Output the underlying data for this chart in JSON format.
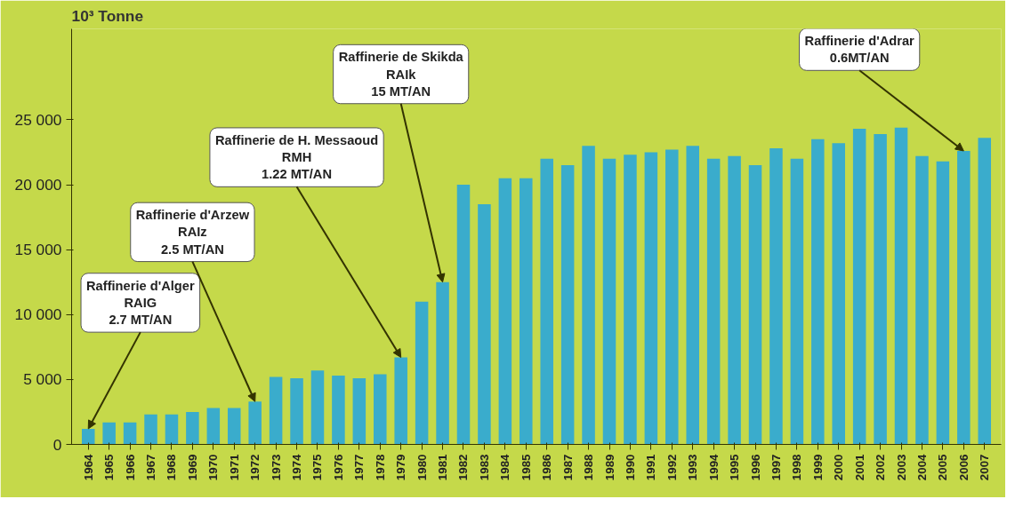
{
  "chart_data": {
    "type": "bar",
    "ylabel": "10³ Tonne",
    "categories": [
      "1964",
      "1965",
      "1966",
      "1967",
      "1968",
      "1969",
      "1970",
      "1971",
      "1972",
      "1973",
      "1974",
      "1975",
      "1976",
      "1977",
      "1978",
      "1979",
      "1980",
      "1981",
      "1982",
      "1983",
      "1984",
      "1985",
      "1986",
      "1987",
      "1988",
      "1989",
      "1990",
      "1991",
      "1992",
      "1993",
      "1994",
      "1995",
      "1996",
      "1997",
      "1998",
      "1999",
      "2000",
      "2001",
      "2002",
      "2003",
      "2004",
      "2005",
      "2006",
      "2007"
    ],
    "values": [
      1200,
      1700,
      1700,
      2300,
      2300,
      2500,
      2800,
      2800,
      3300,
      5200,
      5100,
      5700,
      5300,
      5100,
      5400,
      6700,
      11000,
      12500,
      20000,
      18500,
      20500,
      20500,
      22000,
      21500,
      23000,
      22000,
      22300,
      22500,
      22700,
      23000,
      22000,
      22200,
      21500,
      22800,
      22000,
      23500,
      23200,
      24300,
      23900,
      24400,
      22200,
      21800,
      22600,
      23600
    ],
    "color": "#3aaccc",
    "ylim": [
      0,
      32000
    ],
    "yticks": [
      {
        "value": 0,
        "label": "0"
      },
      {
        "value": 5000,
        "label": "5 000"
      },
      {
        "value": 10000,
        "label": "10 000"
      },
      {
        "value": 15000,
        "label": "15 000"
      },
      {
        "value": 20000,
        "label": "20 000"
      },
      {
        "value": 25000,
        "label": "25 000"
      }
    ],
    "grid": false,
    "annotations": [
      {
        "text": "Raffinerie d'Alger\nRAIG\n2.7 MT/AN",
        "x": "1964",
        "y": 1200
      },
      {
        "text": "Raffinerie d'Arzew\nRAIz\n2.5 MT/AN",
        "x": "1972",
        "y": 3300
      },
      {
        "text": "Raffinerie de H. Messaoud\nRMH\n1.22 MT/AN",
        "x": "1979",
        "y": 6700
      },
      {
        "text": "Raffinerie de Skikda\nRAIk\n15 MT/AN",
        "x": "1981",
        "y": 12500
      },
      {
        "text": "Raffinerie d'Adrar\n0.6MT/AN",
        "x": "2006",
        "y": 22600
      }
    ]
  }
}
